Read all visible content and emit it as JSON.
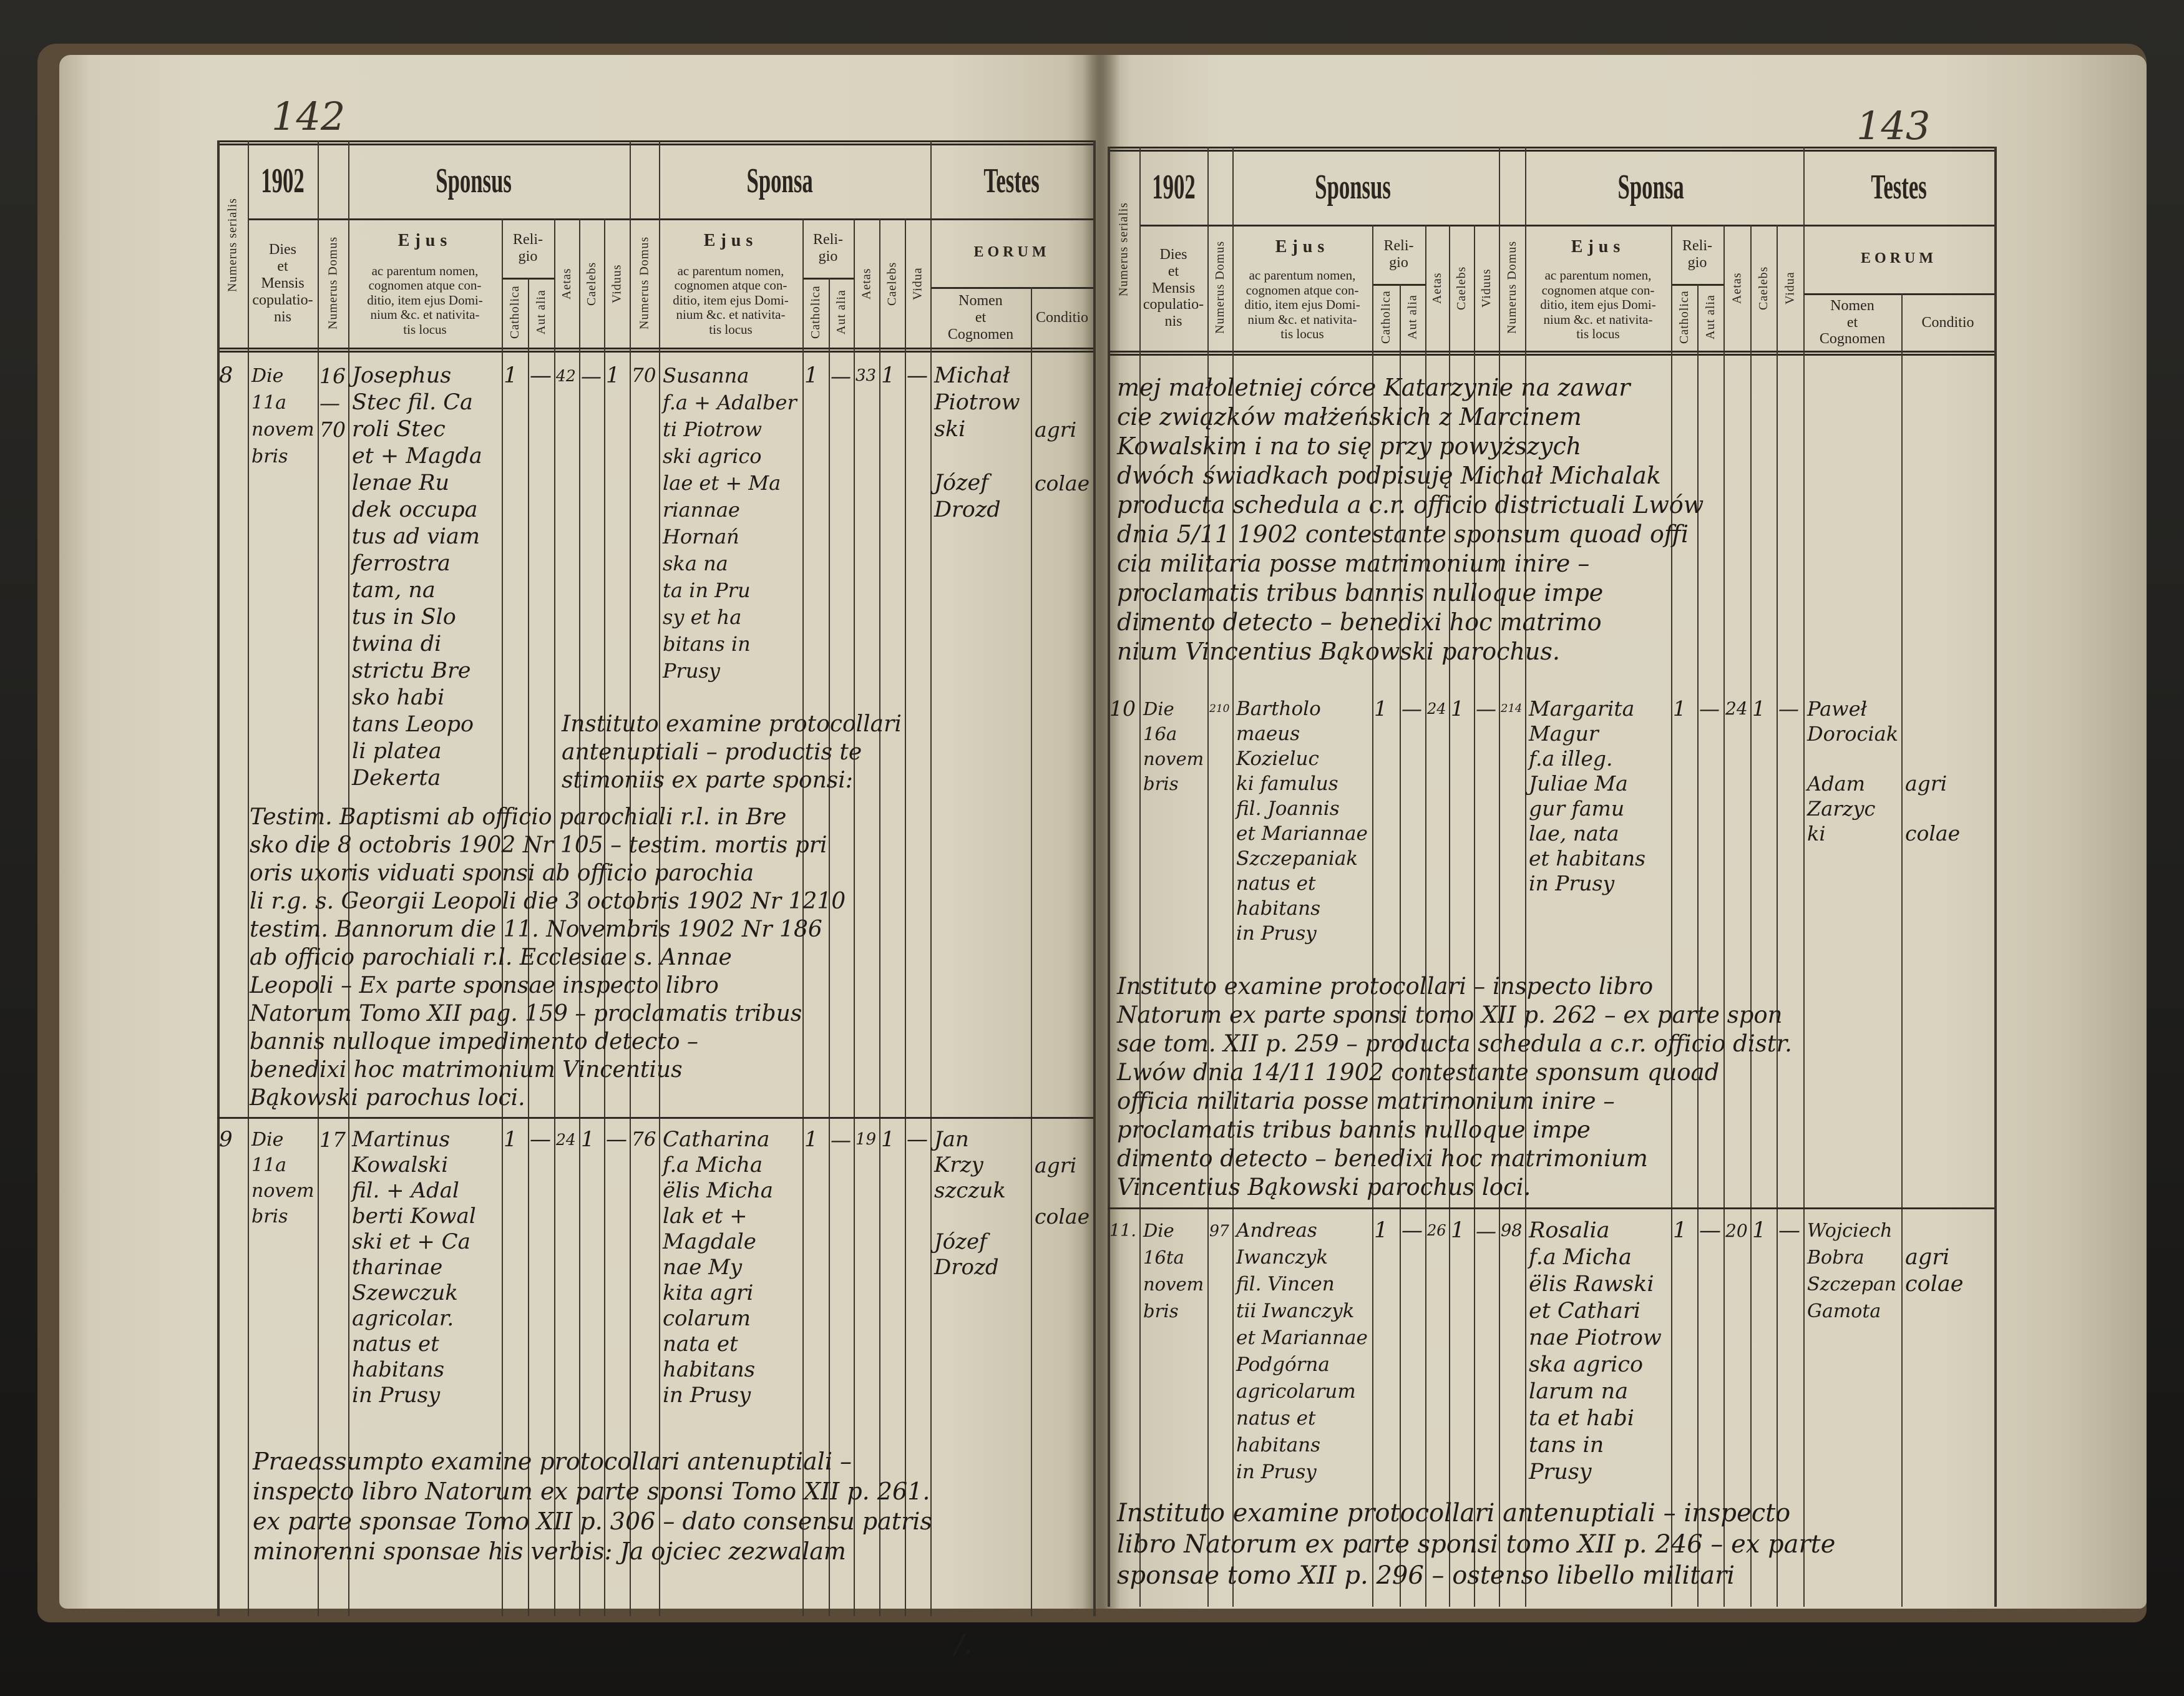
{
  "book": {
    "left_page_number": "142",
    "right_page_number": "143",
    "bottom_mark": "/."
  },
  "header": {
    "year": "1902",
    "sponsus": "Sponsus",
    "sponsa": "Sponsa",
    "testes": "Testes",
    "numerus_serialis": "Numerus serialis",
    "dies": "Dies\net\nMensis\ncopulatio-\nnis",
    "numerus_domus": "Numerus Domus",
    "ejus_title": "Ejus",
    "ejus_text": "ac parentum nomen,\ncognomen atque con-\nditio, item ejus Domi-\nnium &c. et nativita-\ntis locus",
    "religio": "Reli-\ngio",
    "catholica": "Catholica",
    "aut_alia": "Aut alia",
    "aetas": "Aetas",
    "caelebs": "Caelebs",
    "viduus": "Viduus",
    "vidua": "Vidua",
    "eorum": "EORUM",
    "nomen": "Nomen\net\nCognomen",
    "conditio": "Conditio"
  },
  "left_page": {
    "entries": [
      {
        "serial": "8",
        "dies": "Die\n11a\nnovem\nbris",
        "domus_sponsus": "16\n—\n70",
        "sponsus": "Josephus\nStec fil. Ca\nroli Stec\net + Magda\nlenae Ru\ndek occupa\ntus ad viam\nferrostra\ntam, na\ntus in Slo\ntwina di\nstrictu Bre\nsko habi\ntans Leopo\nli platea\nDekerta",
        "sponsus_catholica": "1",
        "sponsus_aut_alia": "—",
        "sponsus_aetas": "42",
        "sponsus_caelebs": "—",
        "sponsus_viduus": "1",
        "domus_sponsa": "70",
        "sponsa": "Susanna\nf.a + Adalber\nti Piotrow\nski agrico\nlae et + Ma\nriannae\nHornań\nska na\nta in Pru\nsy et ha\nbitans in\nPrusy",
        "sponsa_catholica": "1",
        "sponsa_aut_alia": "—",
        "sponsa_aetas": "33",
        "sponsa_caelebs": "1",
        "sponsa_vidua": "—",
        "testes_nomen": "Michał\nPiotrow\nski\n\nJózef\nDrozd",
        "testes_conditio": "\n\nagri\n\ncolae",
        "notes": [
          "Instituto examine protocollari\nantenuptiali – productis te\nstimoniis ex parte sponsi:",
          "Testim. Baptismi ab officio parochiali r.l. in Bre\nsko die 8 octobris 1902 Nr 105 – testim. mortis pri\noris uxoris viduati sponsi ab officio parochia\nli r.g. s. Georgii Leopoli die 3 octobris 1902 Nr 1210\ntestim. Bannorum die 11. Novembris 1902 Nr 186\nab officio parochiali r.l. Ecclesiae s. Annae\nLeopoli – Ex parte sponsae inspecto libro\nNatorum Tomo XII pag. 159 – proclamatis tribus\nbannis nulloque impedimento detecto –\nbenedixi hoc matrimonium Vincentius\nBąkowski parochus loci."
        ]
      },
      {
        "serial": "9",
        "dies": "Die\n11a\nnovem\nbris",
        "domus_sponsus": "17",
        "sponsus": "Martinus\nKowalski\nfil. + Adal\nberti Kowal\nski et + Ca\ntharinae\nSzewczuk\nagricolar.\nnatus et\nhabitans\nin Prusy",
        "sponsus_catholica": "1",
        "sponsus_aut_alia": "—",
        "sponsus_aetas": "24",
        "sponsus_caelebs": "1",
        "sponsus_viduus": "—",
        "domus_sponsa": "76",
        "sponsa": "Catharina\nf.a Micha\nëlis Micha\nlak et +\nMagdale\nnae My\nkita agri\ncolarum\nnata et\nhabitans\nin Prusy",
        "sponsa_catholica": "1",
        "sponsa_aut_alia": "—",
        "sponsa_aetas": "19",
        "sponsa_caelebs": "1",
        "sponsa_vidua": "—",
        "testes_nomen": "Jan\nKrzy\nszczuk\n\nJózef\nDrozd",
        "testes_conditio": "\nagri\n\ncolae",
        "notes": [
          "Praeassumpto examine protocollari antenuptiali –\ninspecto libro Natorum ex parte sponsi Tomo XII p. 261.\nex parte sponsae Tomo XII p. 306 – dato consensu patris\nminorenni sponsae his verbis: Ja ojciec zezwalam"
        ]
      }
    ]
  },
  "right_page": {
    "continuation": "mej małoletniej córce Katarzynie na zawar\ncie związków małżeńskich z Marcinem\nKowalskim i na to się przy powyższych\ndwóch świadkach podpisuję Michał Michalak\nproducta schedula a c.r. officio districtuali Lwów\ndnia 5/11 1902 contestante sponsum quoad offi\ncia militaria posse matrimonium inire –\nproclamatis tribus bannis nulloque impe\ndimento detecto – benedixi hoc matrimo\nnium Vincentius Bąkowski parochus.",
    "entries": [
      {
        "serial": "10",
        "dies": "Die\n16a\nnovem\nbris",
        "domus_sponsus": "210",
        "sponsus": "Bartholo\nmaeus\nKozieluc\nki famulus\nfil. Joannis\net Mariannae\nSzczepaniak\nnatus et\nhabitans\nin Prusy",
        "sponsus_catholica": "1",
        "sponsus_aut_alia": "—",
        "sponsus_aetas": "24",
        "sponsus_caelebs": "1",
        "sponsus_viduus": "—",
        "domus_sponsa": "214",
        "sponsa": "Margarita\nMagur\nf.a illeg.\nJuliae Ma\ngur famu\nlae, nata\net habitans\nin Prusy",
        "sponsa_catholica": "1",
        "sponsa_aut_alia": "—",
        "sponsa_aetas": "24",
        "sponsa_caelebs": "1",
        "sponsa_vidua": "—",
        "testes_nomen": "Paweł\nDorociak\n\nAdam\nZarzyc\nki",
        "testes_conditio": "\n\n\nagri\n\ncolae",
        "notes": [
          "Instituto examine protocollari – inspecto libro\nNatorum ex parte sponsi tomo XII p. 262 – ex parte spon\nsae tom. XII p. 259 – producta schedula a c.r. officio distr.\nLwów dnia 14/11 1902 contestante sponsum quoad\nofficia militaria posse matrimonium inire –\nproclamatis tribus bannis nulloque impe\ndimento detecto – benedixi hoc matrimonium\nVincentius Bąkowski parochus loci."
        ]
      },
      {
        "serial": "11.",
        "dies": "Die\n16ta\nnovem\nbris",
        "domus_sponsus": "97",
        "sponsus": "Andreas\nIwanczyk\nfil. Vincen\ntii Iwanczyk\net Mariannae\nPodgórna\nagricolarum\nnatus et\nhabitans\nin Prusy",
        "sponsus_catholica": "1",
        "sponsus_aut_alia": "—",
        "sponsus_aetas": "26",
        "sponsus_caelebs": "1",
        "sponsus_viduus": "—",
        "domus_sponsa": "98",
        "sponsa": "Rosalia\nf.a Micha\nëlis Rawski\net Cathari\nnae Piotrow\nska agrico\nlarum na\nta et habi\ntans in\nPrusy",
        "sponsa_catholica": "1",
        "sponsa_aut_alia": "—",
        "sponsa_aetas": "20",
        "sponsa_caelebs": "1",
        "sponsa_vidua": "—",
        "testes_nomen": "Wojciech\nBobra\nSzczepan\nGamota",
        "testes_conditio": "\nagri\ncolae",
        "notes": [
          "Instituto examine protocollari antenuptiali – inspecto\nlibro Natorum ex parte sponsi tomo XII p. 246 – ex parte\nsponsae tomo XII p. 296 – ostenso libello militari"
        ]
      }
    ]
  }
}
